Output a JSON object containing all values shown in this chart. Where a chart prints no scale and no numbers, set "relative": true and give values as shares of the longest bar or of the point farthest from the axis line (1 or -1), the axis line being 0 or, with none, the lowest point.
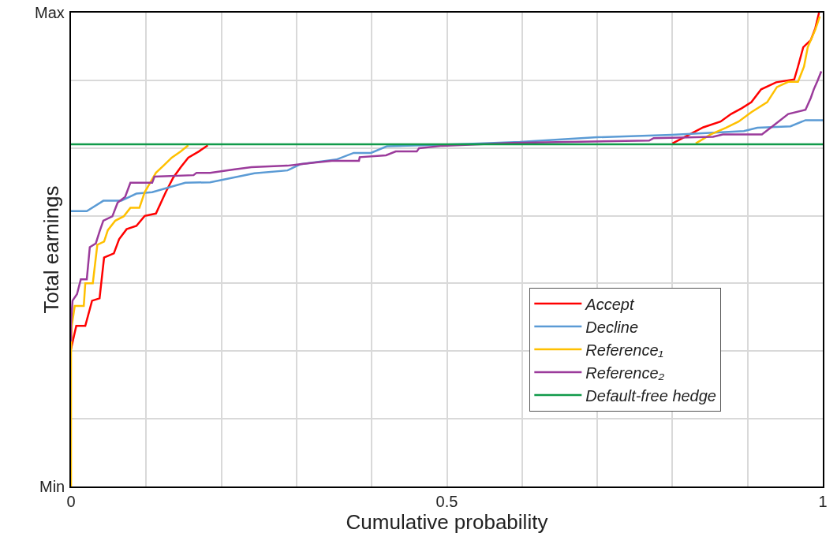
{
  "chart_data": {
    "type": "line",
    "xlabel": "Cumulative probability",
    "ylabel": "Total earnings",
    "xlim": [
      0,
      1
    ],
    "xticks": [
      0,
      {
        "value": 0.1,
        "label": null
      },
      {
        "value": 0.2,
        "label": null
      },
      {
        "value": 0.3,
        "label": null
      },
      {
        "value": 0.4,
        "label": null
      },
      0.5,
      {
        "value": 0.6,
        "label": null
      },
      {
        "value": 0.7,
        "label": null
      },
      {
        "value": 0.8,
        "label": null
      },
      {
        "value": 0.9,
        "label": null
      },
      1
    ],
    "relative": true,
    "annotations": [
      "Min",
      "Max"
    ],
    "grid": true,
    "legend": "bottom right",
    "marker": "none",
    "line_style": "solid",
    "series": [
      {
        "name": "Accept",
        "color": "#ff0000",
        "x": [
          0,
          0.007,
          0.019,
          0.028,
          0.038,
          0.044,
          0.057,
          0.064,
          0.074,
          0.087,
          0.098,
          0.113,
          0.126,
          0.136,
          0.146,
          0.156,
          0.17,
          0.182,
          0.5,
          0.8,
          0.823,
          0.841,
          0.864,
          0.878,
          0.892,
          0.905,
          0.918,
          0.938,
          0.962,
          0.967,
          0.974,
          0.984,
          0.99,
          0.995
        ],
        "values": [
          0.29,
          0.339,
          0.339,
          0.392,
          0.397,
          0.483,
          0.492,
          0.522,
          0.543,
          0.55,
          0.571,
          0.576,
          0.621,
          0.652,
          0.674,
          0.694,
          0.707,
          0.72,
          null,
          0.724,
          0.743,
          0.758,
          0.77,
          0.786,
          0.798,
          0.811,
          0.838,
          0.853,
          0.859,
          0.886,
          0.927,
          0.942,
          0.967,
          1
        ]
      },
      {
        "name": "Decline",
        "color": "#5b9bd5",
        "x": [
          0,
          0.021,
          0.043,
          0.067,
          0.087,
          0.108,
          0.152,
          0.185,
          0.244,
          0.288,
          0.305,
          0.353,
          0.376,
          0.399,
          0.42,
          0.528,
          0.597,
          0.7,
          0.799,
          0.895,
          0.913,
          0.957,
          0.977,
          1
        ],
        "values": [
          0.581,
          0.581,
          0.603,
          0.603,
          0.618,
          0.621,
          0.641,
          0.642,
          0.661,
          0.667,
          0.68,
          0.69,
          0.704,
          0.704,
          0.718,
          0.723,
          0.727,
          0.737,
          0.742,
          0.75,
          0.757,
          0.76,
          0.773,
          0.773
        ]
      },
      {
        "name": "Reference₁",
        "color": "#ffc000",
        "x": [
          0,
          0,
          0.001,
          0.005,
          0.017,
          0.019,
          0.029,
          0.035,
          0.044,
          0.049,
          0.059,
          0.07,
          0.079,
          0.091,
          0.098,
          0.113,
          0.123,
          0.134,
          0.146,
          0.156,
          0.5,
          0.831,
          0.851,
          0.871,
          0.888,
          0.905,
          0.926,
          0.939,
          0.954,
          0.967,
          0.975,
          0.98,
          0.99,
          0.996
        ],
        "values": [
          0,
          0.28,
          0.339,
          0.381,
          0.381,
          0.429,
          0.429,
          0.51,
          0.517,
          0.541,
          0.561,
          0.57,
          0.588,
          0.588,
          0.621,
          0.662,
          0.677,
          0.694,
          0.707,
          0.72,
          null,
          0.724,
          0.743,
          0.757,
          0.77,
          0.79,
          0.811,
          0.843,
          0.854,
          0.854,
          0.886,
          0.927,
          0.964,
          0.992
        ]
      },
      {
        "name": "Reference₂",
        "color": "#9b3b9b",
        "x": [
          0,
          0,
          0.002,
          0.008,
          0.013,
          0.021,
          0.025,
          0.033,
          0.038,
          0.043,
          0.055,
          0.062,
          0.072,
          0.079,
          0.108,
          0.111,
          0.163,
          0.167,
          0.185,
          0.216,
          0.24,
          0.288,
          0.305,
          0.326,
          0.347,
          0.383,
          0.384,
          0.419,
          0.432,
          0.46,
          0.463,
          0.494,
          0.586,
          0.769,
          0.775,
          0.854,
          0.867,
          0.919,
          0.933,
          0.954,
          0.977,
          0.984,
          0.988,
          0.993,
          0.998
        ],
        "values": [
          0.306,
          0.343,
          0.392,
          0.406,
          0.437,
          0.437,
          0.505,
          0.513,
          0.538,
          0.561,
          0.57,
          0.599,
          0.611,
          0.641,
          0.641,
          0.654,
          0.657,
          0.662,
          0.662,
          0.669,
          0.674,
          0.677,
          0.68,
          0.684,
          0.687,
          0.687,
          0.695,
          0.699,
          0.707,
          0.707,
          0.714,
          0.719,
          0.725,
          0.73,
          0.735,
          0.738,
          0.743,
          0.743,
          0.76,
          0.786,
          0.795,
          0.82,
          0.838,
          0.856,
          0.876
        ]
      },
      {
        "name": "Default-free hedge",
        "color": "#109a4a",
        "x": [
          0,
          1
        ],
        "values": [
          0.722,
          0.722
        ]
      }
    ]
  }
}
